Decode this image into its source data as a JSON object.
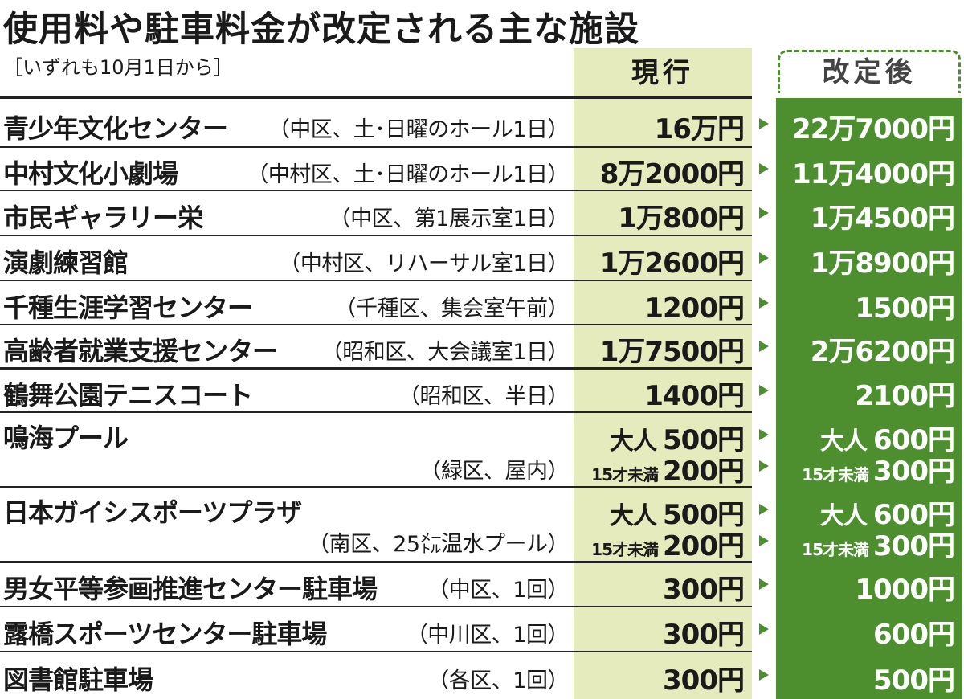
{
  "title": "使用料や駐車料金が改定される主な施設",
  "subtitle": "［いずれも10月1日から］",
  "headers": {
    "current": "現行",
    "revised": "改定後"
  },
  "colors": {
    "current_bg": "#e6ebbd",
    "revised_bg": "#4d8f2e",
    "arrow": "#4d8f2e"
  },
  "rows": [
    {
      "name": "青少年文化センター",
      "detail": "（中区、土･日曜のホール1日）",
      "current": "16万円",
      "revised": "22万7000円"
    },
    {
      "name": "中村文化小劇場",
      "detail": "（中村区、土･日曜のホール1日）",
      "current": "8万2000円",
      "revised": "11万4000円"
    },
    {
      "name": "市民ギャラリー栄",
      "detail": "（中区、第1展示室1日）",
      "current": "1万800円",
      "revised": "1万4500円"
    },
    {
      "name": "演劇練習館",
      "detail": "（中村区、リハーサル室1日）",
      "current": "1万2600円",
      "revised": "1万8900円"
    },
    {
      "name": "千種生涯学習センター",
      "detail": "（千種区、集会室午前）",
      "current": "1200円",
      "revised": "1500円"
    },
    {
      "name": "高齢者就業支援センター",
      "detail": "（昭和区、大会議室1日）",
      "current": "1万7500円",
      "revised": "2万6200円"
    },
    {
      "name": "鶴舞公園テニスコート",
      "detail": "（昭和区、半日）",
      "current": "1400円",
      "revised": "2100円"
    },
    {
      "name": "鳴海プール",
      "detail": "（緑区、屋内）",
      "adult_label": "大人",
      "child_label": "15才未満",
      "current_adult": "500円",
      "current_child": "200円",
      "revised_adult": "600円",
      "revised_child": "300円"
    },
    {
      "name": "日本ガイシスポーツプラザ",
      "detail": "（南区、25㍍温水プール）",
      "adult_label": "大人",
      "child_label": "15才未満",
      "current_adult": "500円",
      "current_child": "200円",
      "revised_adult": "600円",
      "revised_child": "300円"
    },
    {
      "name": "男女平等参画推進センター駐車場",
      "detail": "（中区、1回）",
      "current": "300円",
      "revised": "1000円"
    },
    {
      "name": "露橋スポーツセンター駐車場",
      "detail": "（中川区、1回）",
      "current": "300円",
      "revised": "600円"
    },
    {
      "name": "図書館駐車場",
      "detail": "（各区、1回）",
      "current": "300円",
      "revised": "500円"
    }
  ]
}
